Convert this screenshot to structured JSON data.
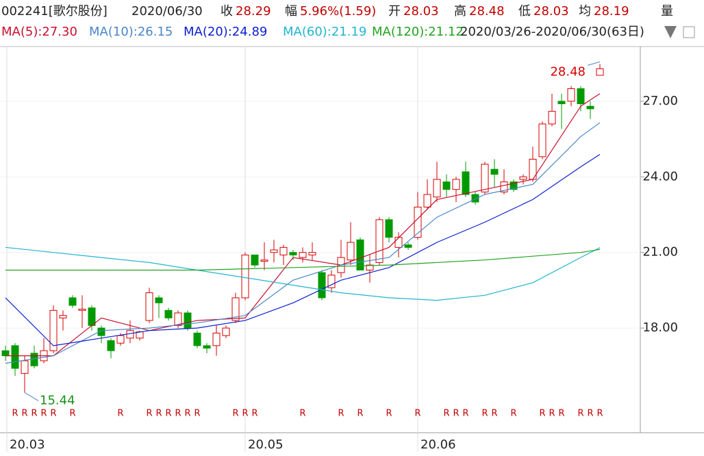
{
  "chart_data": {
    "type": "candlestick",
    "header": {
      "code_name": "002241[歌尔股份]",
      "date": "2020/06/30",
      "quote": [
        {
          "label": "收",
          "value": "28.29"
        },
        {
          "label": "幅",
          "value": "5.96%(1.59)"
        },
        {
          "label": "开",
          "value": "28.03"
        },
        {
          "label": "高",
          "value": "28.48"
        },
        {
          "label": "低",
          "value": "28.03"
        },
        {
          "label": "均",
          "value": "28.19"
        }
      ],
      "volume_label": "量",
      "range": "2020/03/26-2020/06/30(63日)"
    },
    "ylim": [
      13.9,
      28.98
    ],
    "yticks": [
      {
        "value": 18,
        "label": "18.00"
      },
      {
        "value": 21,
        "label": "21.00"
      },
      {
        "value": 24,
        "label": "24.00"
      },
      {
        "value": 27,
        "label": "27.00"
      }
    ],
    "xlim": [
      0,
      62
    ],
    "xticks": [
      {
        "value": 0,
        "label": "20.03"
      },
      {
        "value": 25,
        "label": "20.05"
      },
      {
        "value": 43,
        "label": "20.06"
      }
    ],
    "up_color": "#d40000",
    "down_color": "#009a00",
    "open": [
      17.1,
      17.3,
      16.2,
      17.0,
      16.7,
      17.1,
      18.4,
      19.2,
      18.7,
      18.8,
      18.0,
      17.5,
      17.4,
      17.6,
      17.6,
      18.3,
      19.2,
      18.7,
      18.1,
      18.6,
      17.8,
      17.3,
      17.3,
      17.7,
      18.3,
      19.2,
      20.9,
      20.65,
      21.0,
      20.9,
      21.0,
      20.8,
      20.9,
      20.2,
      19.6,
      20.2,
      20.7,
      21.5,
      20.3,
      20.6,
      22.3,
      21.2,
      21.3,
      21.6,
      22.8,
      23.2,
      23.8,
      23.5,
      24.2,
      23.3,
      23.4,
      24.3,
      23.4,
      23.8,
      23.9,
      23.9,
      24.8,
      26.1,
      27.0,
      27.0,
      27.5,
      26.8,
      28.03
    ],
    "high": [
      17.3,
      17.4,
      16.9,
      17.3,
      17.6,
      18.9,
      18.7,
      19.3,
      19.3,
      18.9,
      18.1,
      17.6,
      17.8,
      18.3,
      17.9,
      19.6,
      19.3,
      18.8,
      18.7,
      18.7,
      17.9,
      17.4,
      18.1,
      18.1,
      19.4,
      21.0,
      20.9,
      21.4,
      21.5,
      21.3,
      21.1,
      21.2,
      21.4,
      20.3,
      20.3,
      21.5,
      22.2,
      21.6,
      20.9,
      22.4,
      22.4,
      21.8,
      21.4,
      23.4,
      23.9,
      24.6,
      24.1,
      24.0,
      24.6,
      23.4,
      24.6,
      24.7,
      24.3,
      23.9,
      24.1,
      25.2,
      26.2,
      27.3,
      27.3,
      27.6,
      27.6,
      27.0,
      28.48
    ],
    "low": [
      16.7,
      16.1,
      15.44,
      16.4,
      16.6,
      17.0,
      17.9,
      18.8,
      18.0,
      17.9,
      17.4,
      16.8,
      17.3,
      17.4,
      17.5,
      18.2,
      18.4,
      18.3,
      18.0,
      17.9,
      17.2,
      17.0,
      16.9,
      17.6,
      18.2,
      19.1,
      20.4,
      20.3,
      20.6,
      20.5,
      20.7,
      20.6,
      20.7,
      19.1,
      19.4,
      20.0,
      20.5,
      20.3,
      19.8,
      20.5,
      21.4,
      20.8,
      21.1,
      21.5,
      22.7,
      23.0,
      23.2,
      23.0,
      23.2,
      22.9,
      23.3,
      23.6,
      23.3,
      23.4,
      23.7,
      23.8,
      24.7,
      26.0,
      25.9,
      26.8,
      26.6,
      26.3,
      28.03
    ],
    "close": [
      16.9,
      16.4,
      16.7,
      16.5,
      17.1,
      18.7,
      18.5,
      18.9,
      18.75,
      18.1,
      17.7,
      17.1,
      17.7,
      17.9,
      17.85,
      19.4,
      19.0,
      18.4,
      18.6,
      18.0,
      17.3,
      17.2,
      17.8,
      18.0,
      19.2,
      20.9,
      20.5,
      20.7,
      21.1,
      21.2,
      20.9,
      21.0,
      21.0,
      19.2,
      20.1,
      20.8,
      21.4,
      20.3,
      20.5,
      22.3,
      21.6,
      21.6,
      21.2,
      22.8,
      23.3,
      23.9,
      23.5,
      23.9,
      23.3,
      23.0,
      24.5,
      24.1,
      23.8,
      23.5,
      24.0,
      24.7,
      26.1,
      26.6,
      26.9,
      27.5,
      26.9,
      26.7,
      28.29
    ],
    "series": [
      {
        "name": "MA(5):27.30",
        "color": "#c8102e",
        "x": [
          0,
          5,
          10,
          15,
          20,
          25,
          30,
          35,
          40,
          45,
          50,
          55,
          60,
          62
        ],
        "values": [
          16.9,
          16.9,
          18.4,
          17.9,
          18.3,
          18.4,
          20.8,
          20.5,
          21.2,
          23.1,
          23.5,
          23.9,
          26.8,
          27.3
        ]
      },
      {
        "name": "MA(10):26.15",
        "color": "#4a86c8",
        "x": [
          0,
          5,
          10,
          15,
          20,
          25,
          30,
          35,
          40,
          45,
          50,
          55,
          60,
          62
        ],
        "values": [
          16.6,
          16.9,
          17.9,
          18.0,
          18.2,
          18.5,
          19.9,
          20.5,
          20.8,
          22.4,
          23.3,
          23.7,
          25.6,
          26.15
        ]
      },
      {
        "name": "MA(20):24.89",
        "color": "#0a1fcf",
        "x": [
          0,
          5,
          10,
          15,
          20,
          25,
          30,
          35,
          40,
          45,
          50,
          55,
          60,
          62
        ],
        "values": [
          19.2,
          17.3,
          17.6,
          17.9,
          18.0,
          18.3,
          19.0,
          19.9,
          20.4,
          21.4,
          22.2,
          23.1,
          24.4,
          24.89
        ]
      },
      {
        "name": "MA(60):21.19",
        "color": "#1fb5cf",
        "x": [
          0,
          5,
          10,
          15,
          20,
          25,
          30,
          35,
          40,
          45,
          50,
          55,
          60,
          62
        ],
        "values": [
          21.2,
          21.0,
          20.8,
          20.6,
          20.3,
          20.0,
          19.7,
          19.4,
          19.2,
          19.1,
          19.3,
          19.8,
          20.8,
          21.19
        ]
      },
      {
        "name": "MA(120):21.12",
        "color": "#22a322",
        "x": [
          0,
          10,
          20,
          30,
          40,
          50,
          60,
          62
        ],
        "values": [
          20.3,
          20.3,
          20.3,
          20.4,
          20.5,
          20.7,
          21.0,
          21.12
        ]
      }
    ],
    "markers": {
      "label": "R",
      "x": [
        1,
        2,
        3,
        4,
        5,
        7,
        12,
        15,
        16,
        17,
        18,
        19,
        20,
        24,
        25,
        26,
        31,
        35,
        37,
        40,
        43,
        46,
        47,
        48,
        50,
        51,
        53,
        56,
        57,
        58,
        60,
        61,
        62
      ]
    },
    "annotations": [
      {
        "text": "28.48",
        "x": 62,
        "y": 28.48,
        "color": "#d40000"
      },
      {
        "text": "15.44",
        "x": 2,
        "y": 15.44,
        "color": "#1a8f1a"
      }
    ]
  }
}
